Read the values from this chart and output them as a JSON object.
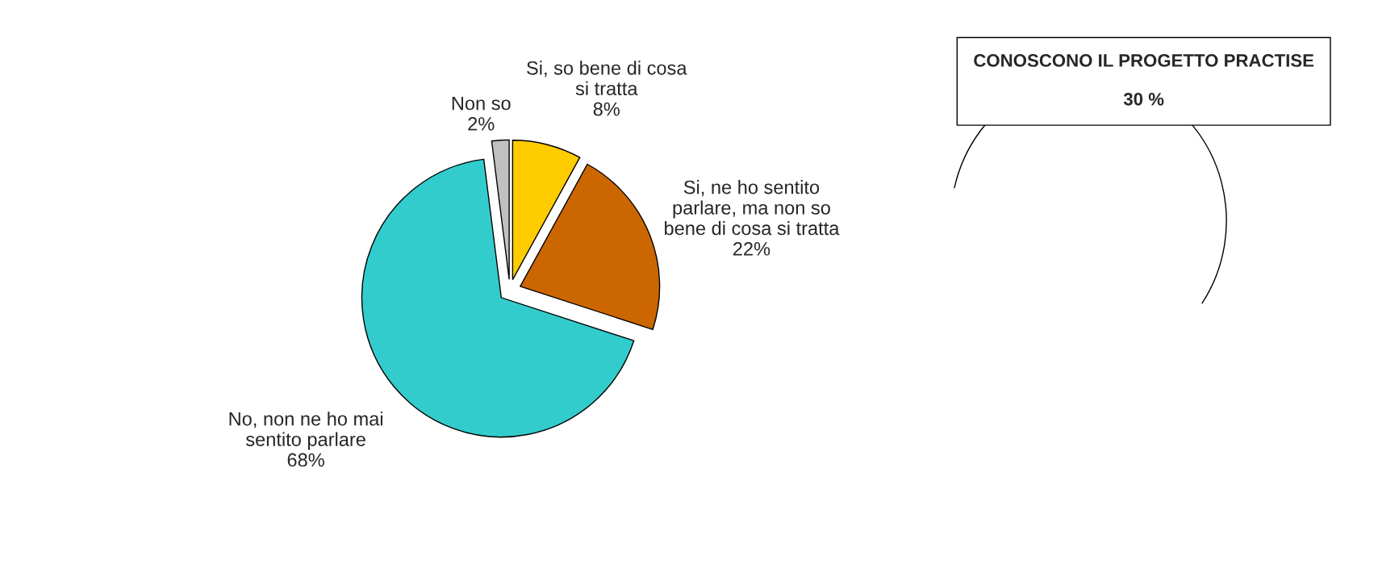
{
  "chart_data": {
    "type": "pie",
    "categories": [
      "Si, so bene di cosa\nsi tratta",
      "Si, ne ho sentito\nparlare, ma non so\nbene di cosa si tratta",
      "No, non ne ho mai\nsentito parlare",
      "Non so"
    ],
    "values": [
      8,
      22,
      68,
      2
    ],
    "value_labels": [
      "8%",
      "22%",
      "68%",
      "2%"
    ],
    "colors": [
      "#ffcc00",
      "#cc6600",
      "#33cccc",
      "#c0c0c0"
    ],
    "annotations": [
      "CONOSCONO IL PROGETTO PRACTISE\n\n30 %"
    ]
  }
}
